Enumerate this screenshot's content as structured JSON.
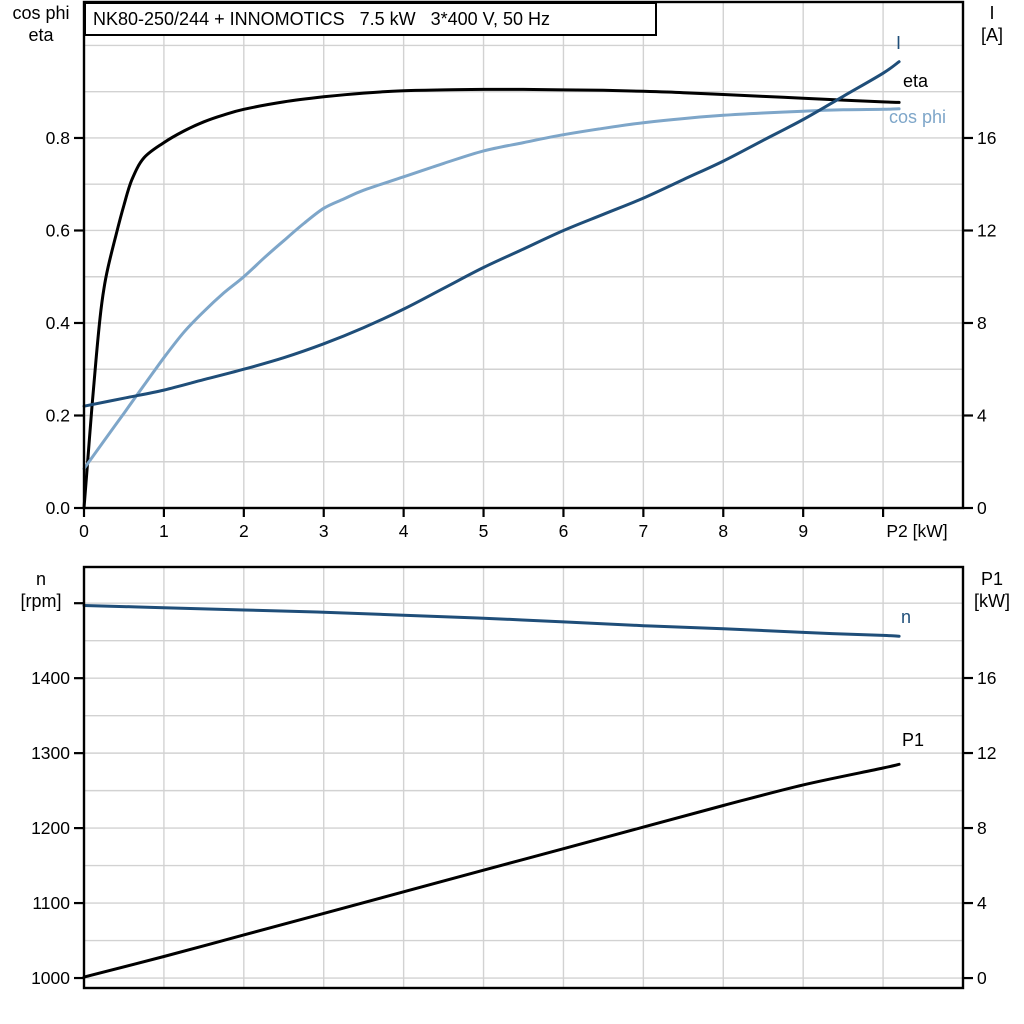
{
  "page": {
    "background": "#ffffff"
  },
  "colors": {
    "black": "#000000",
    "dark_blue": "#1F4E79",
    "light_blue": "#7EA6C9",
    "grid": "#D2D2D2",
    "frame": "#000000"
  },
  "chart_data": [
    {
      "id": "motor-performance",
      "type": "line",
      "title": "NK80-250/244 + INNOMOTICS   7.5 kW   3*400 V, 50 Hz",
      "x_axis": {
        "label": "P2 [kW]",
        "min": 0,
        "max": 11,
        "grid_interval": 1,
        "tick_values": [
          0,
          1,
          2,
          3,
          4,
          5,
          6,
          7,
          8,
          9,
          10
        ],
        "tick_labels": [
          "0",
          "1",
          "2",
          "3",
          "4",
          "5",
          "6",
          "7",
          "8",
          "9",
          ""
        ]
      },
      "y_left": {
        "title_lines": [
          "cos phi",
          "eta"
        ],
        "min": 0,
        "max": 1.094,
        "grid_interval": 0.1,
        "grid_min": 0.1,
        "grid_max": 1.0,
        "tick_values": [
          0,
          0.2,
          0.4,
          0.6,
          0.8
        ],
        "tick_labels": [
          "0.0",
          "0.2",
          "0.4",
          "0.6",
          "0.8"
        ],
        "extra_tick_values": []
      },
      "y_right": {
        "title_lines": [
          "I",
          "[A]"
        ],
        "min": 0,
        "max": 21.88,
        "tick_values": [
          0,
          4,
          8,
          12,
          16
        ],
        "tick_labels": [
          "0",
          "4",
          "8",
          "12",
          "16"
        ],
        "extra_tick_values": []
      },
      "series": [
        {
          "name": "eta",
          "label": "eta",
          "axis": "left",
          "color": "#000000",
          "points": [
            [
              0,
              0
            ],
            [
              0.05,
              0.11
            ],
            [
              0.1,
              0.22
            ],
            [
              0.15,
              0.32
            ],
            [
              0.2,
              0.41
            ],
            [
              0.25,
              0.475
            ],
            [
              0.3,
              0.52
            ],
            [
              0.4,
              0.59
            ],
            [
              0.5,
              0.655
            ],
            [
              0.6,
              0.71
            ],
            [
              0.75,
              0.757
            ],
            [
              1,
              0.79
            ],
            [
              1.25,
              0.815
            ],
            [
              1.5,
              0.835
            ],
            [
              1.75,
              0.85
            ],
            [
              2,
              0.862
            ],
            [
              2.5,
              0.878
            ],
            [
              3,
              0.889
            ],
            [
              3.5,
              0.897
            ],
            [
              4,
              0.902
            ],
            [
              4.5,
              0.904
            ],
            [
              5,
              0.905
            ],
            [
              5.5,
              0.905
            ],
            [
              6,
              0.904
            ],
            [
              6.5,
              0.903
            ],
            [
              7,
              0.901
            ],
            [
              7.5,
              0.898
            ],
            [
              8,
              0.894
            ],
            [
              8.5,
              0.89
            ],
            [
              9,
              0.886
            ],
            [
              9.5,
              0.882
            ],
            [
              10,
              0.878
            ],
            [
              10.2,
              0.877
            ]
          ]
        },
        {
          "name": "cos-phi",
          "label": "cos phi",
          "axis": "left",
          "color": "#7EA6C9",
          "points": [
            [
              0,
              0.085
            ],
            [
              0.25,
              0.145
            ],
            [
              0.5,
              0.205
            ],
            [
              0.75,
              0.265
            ],
            [
              1,
              0.325
            ],
            [
              1.25,
              0.38
            ],
            [
              1.5,
              0.425
            ],
            [
              1.75,
              0.465
            ],
            [
              2,
              0.5
            ],
            [
              2.25,
              0.54
            ],
            [
              2.5,
              0.578
            ],
            [
              2.75,
              0.615
            ],
            [
              3,
              0.648
            ],
            [
              3.25,
              0.668
            ],
            [
              3.5,
              0.687
            ],
            [
              4,
              0.716
            ],
            [
              4.5,
              0.745
            ],
            [
              5,
              0.772
            ],
            [
              5.5,
              0.79
            ],
            [
              6,
              0.807
            ],
            [
              6.5,
              0.821
            ],
            [
              7,
              0.833
            ],
            [
              7.5,
              0.842
            ],
            [
              8,
              0.849
            ],
            [
              8.5,
              0.854
            ],
            [
              9,
              0.858
            ],
            [
              9.5,
              0.861
            ],
            [
              10,
              0.862
            ],
            [
              10.2,
              0.863
            ]
          ]
        },
        {
          "name": "current",
          "label": "I",
          "axis": "right",
          "color": "#1F4E79",
          "points": [
            [
              0,
              4.4
            ],
            [
              0.5,
              4.75
            ],
            [
              1,
              5.1
            ],
            [
              1.5,
              5.55
            ],
            [
              2,
              6.0
            ],
            [
              2.5,
              6.5
            ],
            [
              3,
              7.1
            ],
            [
              3.5,
              7.8
            ],
            [
              4,
              8.6
            ],
            [
              4.5,
              9.5
            ],
            [
              5,
              10.4
            ],
            [
              5.5,
              11.2
            ],
            [
              6,
              12.0
            ],
            [
              6.5,
              12.7
            ],
            [
              7,
              13.4
            ],
            [
              7.5,
              14.2
            ],
            [
              8,
              15.0
            ],
            [
              8.5,
              15.9
            ],
            [
              9,
              16.8
            ],
            [
              9.5,
              17.8
            ],
            [
              10,
              18.8
            ],
            [
              10.2,
              19.3
            ]
          ]
        }
      ]
    },
    {
      "id": "speed-power",
      "type": "line",
      "title": "",
      "x_axis": {
        "label": "",
        "min": 0,
        "max": 11,
        "grid_interval": 1,
        "tick_values": [],
        "tick_labels": []
      },
      "y_left": {
        "title_lines": [
          "n",
          "[rpm]"
        ],
        "min": 986.7,
        "max": 1548.3,
        "grid_interval": 50,
        "grid_min": 1000,
        "grid_max": 1500,
        "tick_values": [
          1000,
          1100,
          1200,
          1300,
          1400
        ],
        "tick_labels": [
          "1000",
          "1100",
          "1200",
          "1300",
          "1400"
        ],
        "extra_tick_values": [
          1500
        ]
      },
      "y_right": {
        "title_lines": [
          "P1",
          "[kW]"
        ],
        "min": -0.53,
        "max": 21.92,
        "tick_values": [
          0,
          4,
          8,
          12,
          16
        ],
        "tick_labels": [
          "0",
          "4",
          "8",
          "12",
          "16"
        ],
        "extra_tick_values": []
      },
      "series": [
        {
          "name": "speed",
          "label": "n",
          "axis": "left",
          "color": "#1F4E79",
          "points": [
            [
              0,
              1497
            ],
            [
              1,
              1494
            ],
            [
              2,
              1491
            ],
            [
              3,
              1488
            ],
            [
              4,
              1484
            ],
            [
              5,
              1480
            ],
            [
              6,
              1475
            ],
            [
              7,
              1470
            ],
            [
              8,
              1466
            ],
            [
              9,
              1461
            ],
            [
              10,
              1457
            ],
            [
              10.2,
              1456
            ]
          ]
        },
        {
          "name": "input-power",
          "label": "P1",
          "axis": "right",
          "color": "#000000",
          "points": [
            [
              0,
              0.05
            ],
            [
              1,
              1.15
            ],
            [
              2,
              2.3
            ],
            [
              3,
              3.45
            ],
            [
              4,
              4.6
            ],
            [
              5,
              5.75
            ],
            [
              6,
              6.9
            ],
            [
              7,
              8.05
            ],
            [
              8,
              9.2
            ],
            [
              9,
              10.3
            ],
            [
              10,
              11.2
            ],
            [
              10.2,
              11.4
            ]
          ]
        }
      ]
    }
  ]
}
